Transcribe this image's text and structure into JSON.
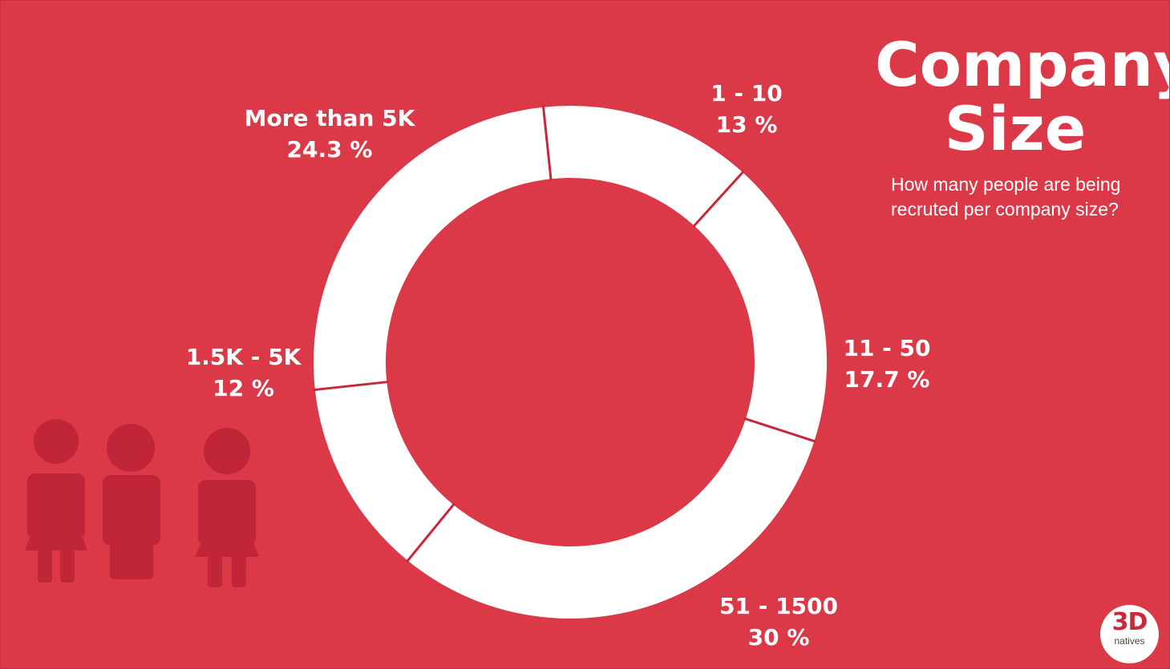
{
  "colors": {
    "background": "#db3848",
    "ring": "#ffffff",
    "separator": "#c9263a",
    "people": "#c02637",
    "logo_accent": "#c92a3a"
  },
  "title": {
    "line1": "Company",
    "line2": "Size"
  },
  "subtitle": {
    "line1": "How many people are being",
    "line2": "recruted per company size?"
  },
  "logo": {
    "mark": "3D",
    "word": "natives"
  },
  "people_icons": [
    "female-person-icon",
    "male-person-icon",
    "female-person-icon"
  ],
  "chart_data": {
    "type": "pie",
    "style": "donut",
    "start_angle_deg": -6,
    "direction": "clockwise",
    "categories": [
      "1 - 10",
      "11 - 50",
      "51 - 1500",
      "1.5K - 5K",
      "More than 5K"
    ],
    "values": [
      13,
      17.7,
      30,
      12,
      24.3
    ],
    "value_labels": [
      "13 %",
      "17.7 %",
      "30 %",
      "12 %",
      "24.3 %"
    ],
    "title": "Company Size",
    "legend": "none"
  }
}
